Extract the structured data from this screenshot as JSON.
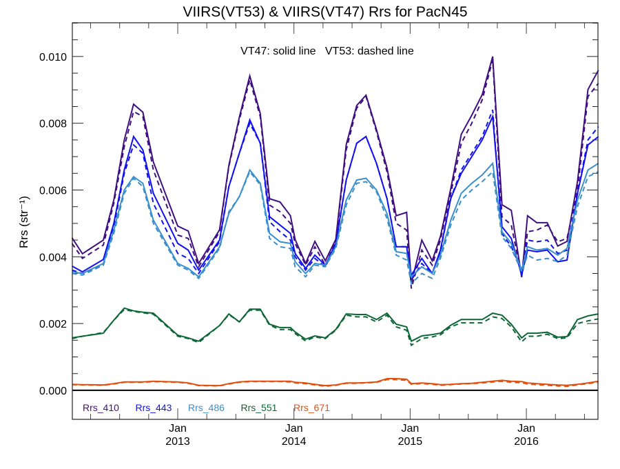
{
  "chart_data": {
    "type": "line",
    "title": "VIIRS(VT53) & VIIRS(VT47)  Rrs for PacN45",
    "annotation": "VT47: solid line   VT53: dashed line",
    "xlabel": "",
    "ylabel": "Rrs (str⁻¹)",
    "xlim": [
      2012.093,
      2016.616
    ],
    "ylim": [
      -0.00087,
      0.01101
    ],
    "grid": false,
    "legend_position": "bottom-left",
    "yticks": [
      0.0,
      0.002,
      0.004,
      0.006,
      0.008,
      0.01
    ],
    "ytick_labels": [
      "0.000",
      "0.002",
      "0.004",
      "0.006",
      "0.008",
      "0.010"
    ],
    "xticks": [
      {
        "x": 2013,
        "month": "Jan",
        "year": "2013"
      },
      {
        "x": 2014,
        "month": "Jan",
        "year": "2014"
      },
      {
        "x": 2015,
        "month": "Jan",
        "year": "2015"
      },
      {
        "x": 2016,
        "month": "Jan",
        "year": "2016"
      }
    ],
    "x": [
      2012.09,
      2012.18,
      2012.36,
      2012.45,
      2012.54,
      2012.62,
      2012.7,
      2012.79,
      2013.0,
      2013.09,
      2013.18,
      2013.36,
      2013.44,
      2013.53,
      2013.62,
      2013.71,
      2013.79,
      2013.88,
      2013.97,
      2014.01,
      2014.1,
      2014.18,
      2014.27,
      2014.36,
      2014.45,
      2014.54,
      2014.62,
      2014.71,
      2014.8,
      2014.88,
      2014.97,
      2015.01,
      2015.1,
      2015.19,
      2015.26,
      2015.35,
      2015.44,
      2015.53,
      2015.62,
      2015.71,
      2015.79,
      2015.87,
      2015.96,
      2016.01,
      2016.09,
      2016.18,
      2016.27,
      2016.35,
      2016.44,
      2016.53,
      2016.62
    ],
    "y_scale": 0.001,
    "series": [
      {
        "name": "Rrs_410",
        "sensor": "VT47",
        "style": "solid",
        "color": "#3f0f7f",
        "y": [
          4.57,
          4.09,
          4.5,
          5.7,
          7.5,
          8.57,
          8.33,
          6.84,
          4.92,
          4.77,
          3.8,
          4.81,
          6.74,
          8.18,
          9.42,
          8.29,
          5.74,
          5.64,
          5.23,
          4.52,
          3.8,
          4.46,
          3.88,
          4.52,
          7.36,
          8.53,
          8.84,
          7.81,
          6.67,
          5.23,
          5.33,
          3.2,
          4.5,
          3.88,
          4.61,
          6.05,
          7.67,
          8.24,
          8.86,
          10.0,
          5.56,
          5.39,
          3.39,
          5.23,
          5.02,
          5.02,
          4.32,
          4.46,
          6.26,
          9.01,
          9.59
        ]
      },
      {
        "name": "Rrs_410",
        "sensor": "VT53",
        "style": "dashed",
        "color": "#3f0f7f",
        "y": [
          4.4,
          3.95,
          4.35,
          5.6,
          7.3,
          8.35,
          8.2,
          6.6,
          4.65,
          4.55,
          3.7,
          4.75,
          6.7,
          8.1,
          9.3,
          8.2,
          5.55,
          5.35,
          5.0,
          4.4,
          3.75,
          4.3,
          3.75,
          4.45,
          7.2,
          8.45,
          8.8,
          7.75,
          6.55,
          5.0,
          4.8,
          3.05,
          4.2,
          3.75,
          4.5,
          5.9,
          7.4,
          8.0,
          8.7,
          9.9,
          5.2,
          4.95,
          3.4,
          4.75,
          4.8,
          4.95,
          4.45,
          4.55,
          6.0,
          8.8,
          9.2
        ]
      },
      {
        "name": "Rrs_443",
        "sensor": "VT47",
        "style": "solid",
        "color": "#1010f0",
        "y": [
          3.72,
          3.55,
          3.92,
          5.0,
          6.6,
          7.6,
          7.2,
          5.9,
          4.4,
          4.2,
          3.6,
          4.5,
          6.1,
          7.1,
          8.1,
          7.4,
          5.2,
          4.95,
          4.7,
          4.1,
          3.65,
          4.05,
          3.75,
          4.4,
          6.3,
          7.4,
          7.6,
          6.8,
          5.75,
          4.3,
          4.3,
          3.45,
          3.95,
          3.5,
          4.2,
          5.75,
          6.5,
          7.0,
          7.5,
          8.2,
          4.9,
          4.55,
          3.45,
          4.2,
          4.15,
          4.2,
          3.85,
          3.9,
          5.9,
          7.35,
          7.6
        ]
      },
      {
        "name": "Rrs_443",
        "sensor": "VT53",
        "style": "dashed",
        "color": "#1010f0",
        "y": [
          3.6,
          3.5,
          3.75,
          4.9,
          6.5,
          7.35,
          7.1,
          5.6,
          4.1,
          3.95,
          3.5,
          4.45,
          6.1,
          7.1,
          8.0,
          7.4,
          5.05,
          4.75,
          4.5,
          4.0,
          3.6,
          3.95,
          3.7,
          4.35,
          6.3,
          7.4,
          7.6,
          6.8,
          5.75,
          4.3,
          4.3,
          3.3,
          3.8,
          3.5,
          4.15,
          5.75,
          6.6,
          7.1,
          7.6,
          8.4,
          4.7,
          4.3,
          3.6,
          4.5,
          4.45,
          4.5,
          4.1,
          4.2,
          5.9,
          7.5,
          7.9
        ]
      },
      {
        "name": "Rrs_486",
        "sensor": "VT47",
        "style": "solid",
        "color": "#3a8ecb",
        "y": [
          3.55,
          3.5,
          3.8,
          4.8,
          6.0,
          6.4,
          6.2,
          5.1,
          3.8,
          3.65,
          3.4,
          4.3,
          5.3,
          5.8,
          6.6,
          6.2,
          4.7,
          4.45,
          4.4,
          3.85,
          3.5,
          3.8,
          3.75,
          4.3,
          5.7,
          6.3,
          6.35,
          6.0,
          5.3,
          4.15,
          4.1,
          3.4,
          3.7,
          3.5,
          4.05,
          5.1,
          5.9,
          6.2,
          6.45,
          6.8,
          4.75,
          4.4,
          3.6,
          4.3,
          4.2,
          4.25,
          4.05,
          4.25,
          5.7,
          6.6,
          6.8
        ]
      },
      {
        "name": "Rrs_486",
        "sensor": "VT53",
        "style": "dashed",
        "color": "#3a8ecb",
        "y": [
          3.5,
          3.45,
          3.75,
          4.7,
          5.9,
          6.35,
          6.1,
          5.0,
          3.75,
          3.6,
          3.35,
          4.25,
          5.35,
          5.8,
          6.55,
          6.15,
          4.55,
          4.3,
          4.25,
          3.7,
          3.4,
          3.75,
          3.7,
          4.25,
          5.55,
          6.2,
          6.25,
          5.95,
          5.15,
          4.05,
          3.9,
          3.2,
          3.5,
          3.35,
          3.95,
          4.95,
          5.7,
          6.0,
          6.25,
          6.55,
          4.6,
          4.25,
          3.55,
          4.05,
          3.9,
          3.95,
          3.85,
          4.05,
          5.5,
          6.4,
          6.55
        ]
      },
      {
        "name": "Rrs_551",
        "sensor": "VT47",
        "style": "solid",
        "color": "#0c6636",
        "y": [
          1.57,
          1.62,
          1.71,
          2.1,
          2.46,
          2.38,
          2.34,
          2.31,
          1.65,
          1.57,
          1.47,
          1.94,
          2.29,
          2.05,
          2.43,
          2.43,
          1.98,
          1.88,
          1.88,
          1.75,
          1.53,
          1.63,
          1.57,
          1.82,
          2.29,
          2.27,
          2.27,
          2.12,
          2.31,
          1.98,
          1.9,
          1.47,
          1.63,
          1.67,
          1.71,
          1.95,
          2.12,
          2.12,
          2.12,
          2.31,
          2.25,
          1.98,
          1.57,
          1.71,
          1.71,
          1.74,
          1.59,
          1.61,
          2.12,
          2.23,
          2.29
        ]
      },
      {
        "name": "Rrs_551",
        "sensor": "VT53",
        "style": "dashed",
        "color": "#0c6636",
        "y": [
          1.55,
          1.62,
          1.73,
          2.1,
          2.42,
          2.36,
          2.32,
          2.28,
          1.62,
          1.55,
          1.43,
          1.94,
          2.27,
          2.05,
          2.4,
          2.4,
          1.95,
          1.82,
          1.82,
          1.7,
          1.48,
          1.6,
          1.55,
          1.8,
          2.25,
          2.2,
          2.2,
          2.05,
          2.25,
          1.9,
          1.8,
          1.35,
          1.55,
          1.6,
          1.66,
          1.9,
          2.02,
          2.02,
          2.02,
          2.2,
          2.15,
          1.9,
          1.45,
          1.62,
          1.62,
          1.68,
          1.55,
          1.57,
          2.0,
          2.08,
          2.14
        ]
      },
      {
        "name": "Rrs_671",
        "sensor": "VT47",
        "style": "solid",
        "color": "#e2500e",
        "y": [
          0.18,
          0.17,
          0.16,
          0.2,
          0.25,
          0.25,
          0.25,
          0.27,
          0.25,
          0.22,
          0.15,
          0.14,
          0.2,
          0.25,
          0.27,
          0.27,
          0.27,
          0.27,
          0.27,
          0.24,
          0.22,
          0.18,
          0.14,
          0.16,
          0.22,
          0.22,
          0.23,
          0.25,
          0.35,
          0.35,
          0.33,
          0.2,
          0.22,
          0.2,
          0.17,
          0.18,
          0.2,
          0.21,
          0.24,
          0.27,
          0.3,
          0.27,
          0.26,
          0.22,
          0.2,
          0.18,
          0.16,
          0.15,
          0.18,
          0.22,
          0.27
        ]
      },
      {
        "name": "Rrs_671",
        "sensor": "VT53",
        "style": "dashed",
        "color": "#e2500e",
        "y": [
          0.17,
          0.16,
          0.15,
          0.19,
          0.24,
          0.24,
          0.24,
          0.26,
          0.24,
          0.21,
          0.14,
          0.13,
          0.19,
          0.24,
          0.26,
          0.26,
          0.26,
          0.26,
          0.25,
          0.22,
          0.2,
          0.16,
          0.12,
          0.15,
          0.21,
          0.21,
          0.22,
          0.24,
          0.32,
          0.32,
          0.3,
          0.18,
          0.2,
          0.18,
          0.15,
          0.17,
          0.19,
          0.2,
          0.22,
          0.25,
          0.27,
          0.24,
          0.23,
          0.19,
          0.17,
          0.15,
          0.13,
          0.12,
          0.16,
          0.2,
          0.24
        ]
      }
    ],
    "legend": [
      {
        "label": "Rrs_410",
        "color": "#3f0f7f"
      },
      {
        "label": "Rrs_443",
        "color": "#1010f0"
      },
      {
        "label": "Rrs_486",
        "color": "#3a8ecb"
      },
      {
        "label": "Rrs_551",
        "color": "#0c6636"
      },
      {
        "label": "Rrs_671",
        "color": "#e2500e"
      }
    ]
  }
}
